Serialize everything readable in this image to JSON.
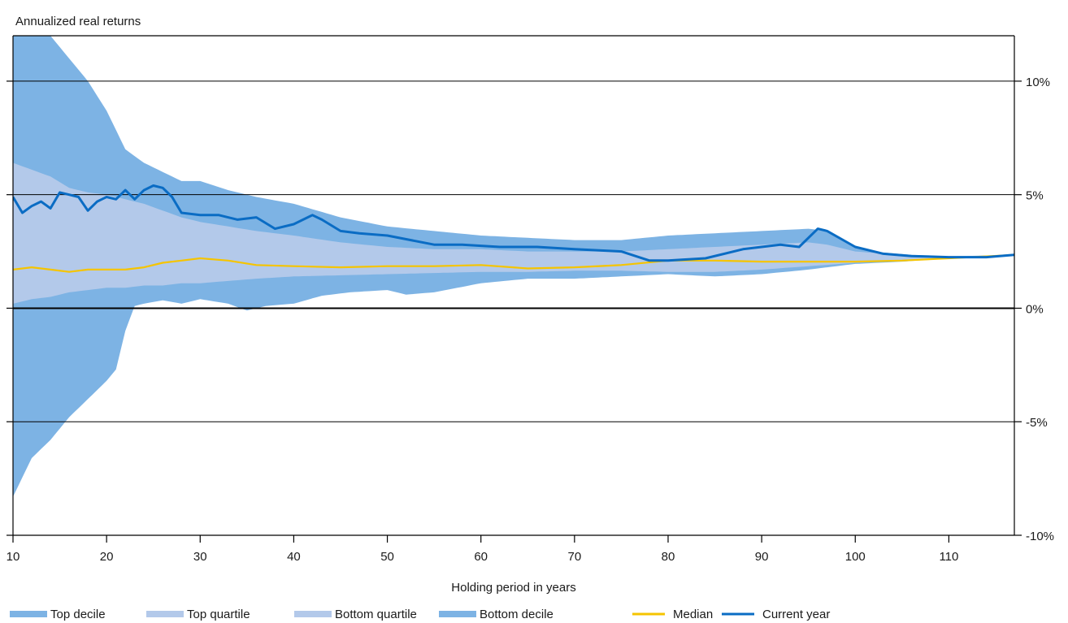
{
  "colors": {
    "decile": "#7db3e4",
    "quartile": "#b3c9ea",
    "median": "#f5c400",
    "current": "#0a6cc4",
    "axis": "#000000"
  },
  "legend": [
    {
      "label": "Top decile",
      "swatch": "band",
      "color": "#7db3e4"
    },
    {
      "label": "Top quartile",
      "swatch": "band",
      "color": "#b3c9ea"
    },
    {
      "label": "Bottom quartile",
      "swatch": "band",
      "color": "#b3c9ea"
    },
    {
      "label": "Bottom decile",
      "swatch": "band",
      "color": "#7db3e4"
    },
    {
      "label": "Median",
      "swatch": "line",
      "color": "#f5c400"
    },
    {
      "label": "Current year",
      "swatch": "line",
      "color": "#0a6cc4"
    }
  ],
  "chart_data": {
    "type": "area",
    "title": "",
    "ylabel": "Annualized real returns",
    "xlabel": "Holding period in years",
    "xlim": [
      10,
      117
    ],
    "ylim": [
      -10,
      12
    ],
    "x_ticks": [
      10,
      20,
      30,
      40,
      50,
      60,
      70,
      80,
      90,
      100,
      110
    ],
    "x_tick_labels": [
      "10",
      "20",
      "30",
      "40",
      "50",
      "60",
      "70",
      "80",
      "90",
      "100",
      "110"
    ],
    "y_ticks": [
      10,
      5,
      0,
      -5,
      -10
    ],
    "y_tick_labels": [
      "10%",
      "5%",
      "0%",
      "-5%",
      "-10%"
    ],
    "grid": true,
    "legend_position": "bottom",
    "series": [
      {
        "name": "Top decile",
        "x": [
          10,
          12,
          14,
          16,
          18,
          20,
          22,
          24,
          26,
          28,
          30,
          33,
          36,
          40,
          45,
          50,
          55,
          60,
          65,
          70,
          75,
          80,
          85,
          90,
          95,
          97,
          100,
          103,
          106,
          110,
          117
        ],
        "y": [
          12,
          12,
          12,
          11,
          10,
          8.7,
          7.0,
          6.4,
          6.0,
          5.6,
          5.6,
          5.2,
          4.9,
          4.6,
          4.0,
          3.6,
          3.4,
          3.2,
          3.1,
          3.0,
          3.0,
          3.2,
          3.3,
          3.4,
          3.5,
          3.4,
          2.7,
          2.45,
          2.35,
          2.28,
          2.35
        ]
      },
      {
        "name": "Top quartile",
        "x": [
          10,
          12,
          14,
          16,
          18,
          20,
          22,
          24,
          26,
          28,
          30,
          33,
          36,
          40,
          45,
          50,
          55,
          60,
          65,
          70,
          75,
          80,
          85,
          90,
          95,
          97,
          100,
          103,
          106,
          110,
          117
        ],
        "y": [
          6.4,
          6.1,
          5.8,
          5.3,
          5.1,
          5.0,
          4.8,
          4.6,
          4.3,
          4.0,
          3.8,
          3.6,
          3.4,
          3.2,
          2.9,
          2.7,
          2.6,
          2.6,
          2.5,
          2.5,
          2.5,
          2.6,
          2.7,
          2.8,
          2.9,
          2.8,
          2.5,
          2.4,
          2.32,
          2.27,
          2.35
        ]
      },
      {
        "name": "Median",
        "x": [
          10,
          12,
          14,
          16,
          18,
          20,
          22,
          24,
          26,
          28,
          30,
          33,
          36,
          40,
          45,
          50,
          55,
          60,
          65,
          70,
          75,
          80,
          85,
          90,
          95,
          100,
          105,
          110,
          117
        ],
        "y": [
          1.7,
          1.8,
          1.7,
          1.6,
          1.7,
          1.7,
          1.7,
          1.8,
          2.0,
          2.1,
          2.2,
          2.1,
          1.9,
          1.85,
          1.8,
          1.85,
          1.85,
          1.9,
          1.75,
          1.8,
          1.9,
          2.1,
          2.1,
          2.05,
          2.05,
          2.05,
          2.1,
          2.2,
          2.35
        ]
      },
      {
        "name": "Bottom quartile",
        "x": [
          10,
          12,
          14,
          16,
          18,
          20,
          22,
          24,
          26,
          28,
          30,
          33,
          36,
          40,
          45,
          50,
          55,
          60,
          65,
          70,
          75,
          80,
          85,
          90,
          95,
          100,
          105,
          110,
          117
        ],
        "y": [
          0.2,
          0.4,
          0.5,
          0.7,
          0.8,
          0.9,
          0.9,
          1.0,
          1.0,
          1.1,
          1.1,
          1.2,
          1.3,
          1.4,
          1.45,
          1.5,
          1.55,
          1.6,
          1.6,
          1.65,
          1.65,
          1.6,
          1.6,
          1.7,
          1.85,
          2.0,
          2.1,
          2.25,
          2.33
        ]
      },
      {
        "name": "Bottom decile",
        "x": [
          10,
          12,
          14,
          16,
          18,
          20,
          21,
          22,
          23,
          24,
          26,
          28,
          30,
          33,
          35,
          37,
          40,
          43,
          46,
          50,
          52,
          55,
          60,
          65,
          70,
          75,
          80,
          85,
          90,
          95,
          100,
          105,
          110,
          117
        ],
        "y": [
          -8.3,
          -6.6,
          -5.8,
          -4.8,
          -4.0,
          -3.2,
          -2.7,
          -1.0,
          0.1,
          0.2,
          0.35,
          0.2,
          0.4,
          0.2,
          -0.1,
          0.1,
          0.2,
          0.55,
          0.7,
          0.8,
          0.6,
          0.7,
          1.1,
          1.3,
          1.3,
          1.4,
          1.5,
          1.4,
          1.5,
          1.7,
          1.95,
          2.05,
          2.2,
          2.33
        ]
      },
      {
        "name": "Current year",
        "x": [
          10,
          11,
          12,
          13,
          14,
          15,
          16,
          17,
          18,
          19,
          20,
          21,
          22,
          23,
          24,
          25,
          26,
          27,
          28,
          30,
          32,
          34,
          36,
          38,
          40,
          42,
          43,
          45,
          47,
          50,
          55,
          58,
          62,
          66,
          70,
          75,
          78,
          80,
          84,
          88,
          92,
          94,
          96,
          97,
          100,
          103,
          106,
          110,
          114,
          117
        ],
        "y": [
          4.9,
          4.2,
          4.5,
          4.7,
          4.4,
          5.1,
          5.0,
          4.9,
          4.3,
          4.7,
          4.9,
          4.8,
          5.2,
          4.8,
          5.2,
          5.4,
          5.3,
          4.9,
          4.2,
          4.1,
          4.1,
          3.9,
          4.0,
          3.5,
          3.7,
          4.1,
          3.9,
          3.4,
          3.3,
          3.2,
          2.8,
          2.8,
          2.7,
          2.7,
          2.6,
          2.5,
          2.1,
          2.1,
          2.2,
          2.6,
          2.8,
          2.7,
          3.5,
          3.4,
          2.7,
          2.4,
          2.3,
          2.25,
          2.25,
          2.35
        ]
      }
    ]
  }
}
